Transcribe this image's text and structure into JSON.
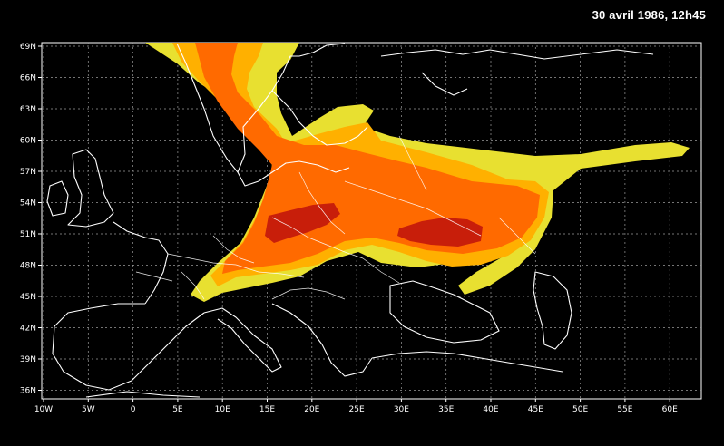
{
  "title": "30 avril 1986, 12h45",
  "latitudes": [
    "69N",
    "66N",
    "63N",
    "60N",
    "57N",
    "54N",
    "51N",
    "48N",
    "45N",
    "42N",
    "39N",
    "36N"
  ],
  "longitudes": [
    "10W",
    "5W",
    "0",
    "5E",
    "10E",
    "15E",
    "20E",
    "25E",
    "30E",
    "35E",
    "40E",
    "45E",
    "50E",
    "55E",
    "60E"
  ],
  "plume_colors": {
    "outer": "#e8e030",
    "mid": "#ffb000",
    "inner": "#ff6a00",
    "core": "#c81e0a"
  }
}
